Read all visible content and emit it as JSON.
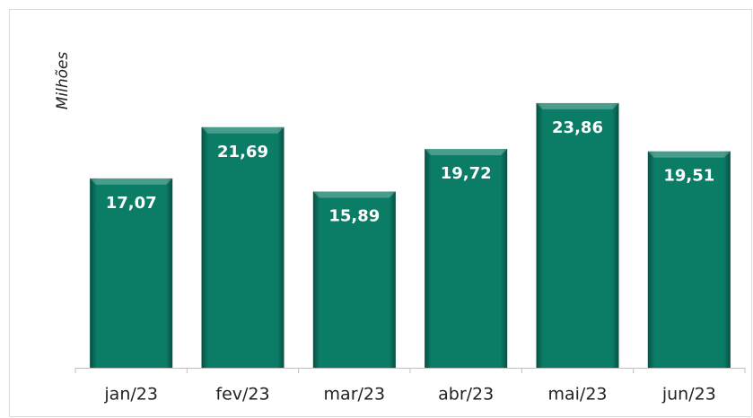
{
  "chart_data": {
    "type": "bar",
    "y_label": "Milhões",
    "categories": [
      "jan/23",
      "fev/23",
      "mar/23",
      "abr/23",
      "mai/23",
      "jun/23"
    ],
    "values": [
      17.07,
      21.69,
      15.89,
      19.72,
      23.86,
      19.51
    ],
    "value_labels": [
      "17,07",
      "21,69",
      "15,89",
      "19,72",
      "23,86",
      "19,51"
    ],
    "color": "#0b7c66",
    "ylim": [
      0,
      30
    ]
  }
}
